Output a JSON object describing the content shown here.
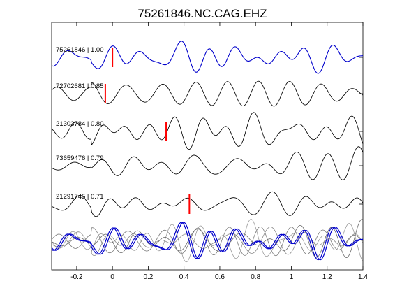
{
  "chart_data": {
    "type": "line",
    "title": "75261846.NC.CAG.EHZ",
    "xlabel": "",
    "ylabel": "",
    "xlim": [
      -0.34,
      1.4
    ],
    "xticks": [
      -0.2,
      0,
      0.2,
      0.4,
      0.6,
      0.8,
      1,
      1.2,
      1.4
    ],
    "xtick_labels": [
      "-0.2",
      "0",
      "0.2",
      "0.4",
      "0.6",
      "0.8",
      "1",
      "1.2",
      "1.4"
    ],
    "yticks": "none",
    "grid": false,
    "legend": "none",
    "colors": {
      "reference": "#0000cc",
      "correlated": "#000000",
      "stack": "#808080",
      "pick": "#ff0000"
    },
    "traces": [
      {
        "label": "75261846 | 1.00",
        "event_id": "75261846",
        "correlation": 1.0,
        "pick_time": 0.0,
        "color": "#0000cc",
        "seed": 1
      },
      {
        "label": "72702681 | 0.85",
        "event_id": "72702681",
        "correlation": 0.85,
        "pick_time": -0.04,
        "color": "#000000",
        "seed": 2
      },
      {
        "label": "21303784 | 0.80",
        "event_id": "21303784",
        "correlation": 0.8,
        "pick_time": 0.3,
        "color": "#000000",
        "seed": 3
      },
      {
        "label": "73659476 | 0.79",
        "event_id": "73659476",
        "correlation": 0.79,
        "pick_time": null,
        "color": "#000000",
        "seed": 4
      },
      {
        "label": "21291745 | 0.71",
        "event_id": "21291745",
        "correlation": 0.71,
        "pick_time": 0.43,
        "color": "#000000",
        "seed": 5
      }
    ],
    "overlay": {
      "type": "stacked-aligned",
      "description_hidden": true
    }
  }
}
